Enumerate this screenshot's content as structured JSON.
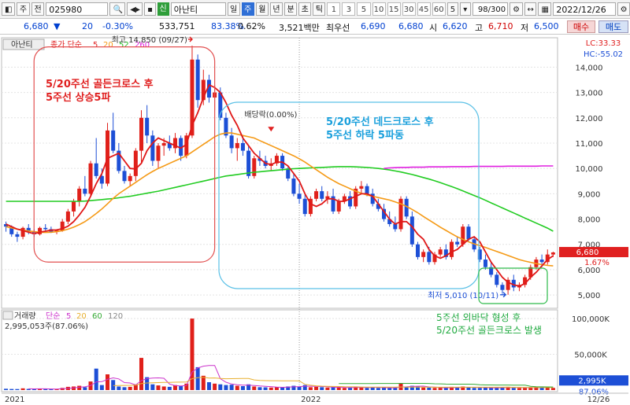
{
  "toolbar": {
    "market": "주",
    "type": "전",
    "code": "025980",
    "sin_badge": "신",
    "stock_name": "아난티",
    "periods": [
      "일",
      "주",
      "월",
      "년",
      "분",
      "초",
      "틱"
    ],
    "active_period": "주",
    "nums": [
      "1",
      "3",
      "5",
      "10",
      "15",
      "30",
      "45",
      "60"
    ],
    "interval": "5",
    "count": "98/300",
    "date": "2022/12/26"
  },
  "quote": {
    "price": "6,680",
    "change": "20",
    "change_pct": "-0.30%",
    "volume": "533,751",
    "ratio": "83.38%",
    "turnover": "0.62%",
    "amount": "3,521백만",
    "best_ask_label": "최우선",
    "best_ask": "6,690",
    "best_bid": "6,680",
    "open_label": "시",
    "open": "6,620",
    "high_label": "고",
    "high": "6,710",
    "low_label": "저",
    "low": "6,500",
    "buy_label": "매수",
    "sell_label": "매도"
  },
  "chart_data": {
    "type": "candlestick",
    "price_legend": {
      "name": "아난티",
      "ma_label": "종가 단순",
      "ma_periods": [
        "5",
        "20",
        "52",
        "260"
      ]
    },
    "lc_label": "LC:33.33",
    "hc_label": "HC:-55.02",
    "price_axis_ticks": [
      "14,000",
      "13,000",
      "12,000",
      "11,000",
      "10,000",
      "9,000",
      "8,000",
      "7,000",
      "6,000",
      "5,000"
    ],
    "ylim": [
      4600,
      15100
    ],
    "current_price_label": "6,680",
    "current_pct_label": "1.67%",
    "candles": [
      [
        7800,
        7900,
        7500,
        7700
      ],
      [
        7700,
        7750,
        7300,
        7400
      ],
      [
        7400,
        7500,
        7100,
        7300
      ],
      [
        7300,
        7700,
        7200,
        7650
      ],
      [
        7650,
        7800,
        7400,
        7500
      ],
      [
        7500,
        7600,
        7300,
        7400
      ],
      [
        7400,
        7700,
        7350,
        7650
      ],
      [
        7650,
        7800,
        7550,
        7600
      ],
      [
        7600,
        7700,
        7450,
        7500
      ],
      [
        7500,
        7600,
        7400,
        7550
      ],
      [
        7550,
        8000,
        7500,
        7900
      ],
      [
        7900,
        8400,
        7800,
        8300
      ],
      [
        8300,
        8800,
        8100,
        8700
      ],
      [
        8700,
        9300,
        8500,
        9200
      ],
      [
        9200,
        9700,
        8900,
        9000
      ],
      [
        9000,
        10300,
        8900,
        10200
      ],
      [
        10200,
        11200,
        9600,
        9700
      ],
      [
        9700,
        10000,
        9200,
        9400
      ],
      [
        9400,
        11800,
        9300,
        11500
      ],
      [
        11500,
        12200,
        10600,
        10700
      ],
      [
        10700,
        11000,
        9800,
        9900
      ],
      [
        9900,
        10100,
        9400,
        9500
      ],
      [
        9500,
        9800,
        9300,
        9700
      ],
      [
        9700,
        10800,
        9500,
        10700
      ],
      [
        10700,
        12300,
        10200,
        12000
      ],
      [
        12000,
        12500,
        11000,
        11300
      ],
      [
        11300,
        11500,
        10100,
        10300
      ],
      [
        10300,
        11000,
        10000,
        10900
      ],
      [
        10900,
        11200,
        10500,
        11000
      ],
      [
        11000,
        11300,
        10700,
        10800
      ],
      [
        10800,
        11400,
        10600,
        11200
      ],
      [
        11200,
        11300,
        10300,
        10500
      ],
      [
        10500,
        11400,
        10400,
        11300
      ],
      [
        11300,
        14850,
        11200,
        14300
      ],
      [
        14300,
        14500,
        12400,
        12700
      ],
      [
        12700,
        13900,
        12500,
        13500
      ],
      [
        13500,
        13700,
        12600,
        12800
      ],
      [
        12800,
        13300,
        12300,
        13000
      ],
      [
        13000,
        13200,
        11900,
        12000
      ],
      [
        12000,
        12200,
        11200,
        11300
      ],
      [
        11300,
        11600,
        10600,
        10800
      ],
      [
        10800,
        11200,
        10300,
        11000
      ],
      [
        11000,
        11300,
        10500,
        10700
      ],
      [
        10700,
        10900,
        9600,
        9700
      ],
      [
        9700,
        10500,
        9600,
        10400
      ],
      [
        10400,
        10700,
        10100,
        10300
      ],
      [
        10300,
        10500,
        10000,
        10100
      ],
      [
        10100,
        10400,
        9900,
        10200
      ],
      [
        10200,
        10600,
        10100,
        10500
      ],
      [
        10500,
        10600,
        9900,
        10000
      ],
      [
        10000,
        10100,
        9500,
        9600
      ],
      [
        9600,
        9800,
        8900,
        9000
      ],
      [
        9000,
        9400,
        8600,
        8800
      ],
      [
        8800,
        9000,
        8100,
        8200
      ],
      [
        8200,
        8900,
        8100,
        8800
      ],
      [
        8800,
        9200,
        8700,
        9100
      ],
      [
        9100,
        9300,
        8700,
        8800
      ],
      [
        8800,
        9100,
        8600,
        8900
      ],
      [
        8900,
        9200,
        8200,
        8300
      ],
      [
        8300,
        8800,
        8200,
        8700
      ],
      [
        8700,
        9000,
        8600,
        8900
      ],
      [
        8900,
        9100,
        8400,
        8500
      ],
      [
        8500,
        9300,
        8400,
        9200
      ],
      [
        9200,
        9500,
        9000,
        9300
      ],
      [
        9300,
        9400,
        8900,
        9000
      ],
      [
        9000,
        9200,
        8500,
        8600
      ],
      [
        8600,
        8800,
        8300,
        8400
      ],
      [
        8400,
        8600,
        7900,
        8000
      ],
      [
        8000,
        8300,
        7700,
        7800
      ],
      [
        7800,
        8100,
        7500,
        7600
      ],
      [
        7600,
        8900,
        7500,
        8800
      ],
      [
        8800,
        8900,
        8000,
        8100
      ],
      [
        8100,
        8300,
        6900,
        7000
      ],
      [
        7000,
        7100,
        6400,
        6500
      ],
      [
        6500,
        6800,
        6300,
        6700
      ],
      [
        6700,
        6900,
        6200,
        6300
      ],
      [
        6300,
        6700,
        6200,
        6600
      ],
      [
        6600,
        6900,
        6500,
        6800
      ],
      [
        6800,
        7000,
        6400,
        6500
      ],
      [
        6500,
        7200,
        6400,
        7100
      ],
      [
        7100,
        7300,
        6900,
        7000
      ],
      [
        7000,
        7800,
        6900,
        7700
      ],
      [
        7700,
        7800,
        7100,
        7200
      ],
      [
        7200,
        7300,
        6700,
        6800
      ],
      [
        6800,
        6900,
        6300,
        6400
      ],
      [
        6400,
        6600,
        6000,
        6100
      ],
      [
        6100,
        6300,
        5700,
        5800
      ],
      [
        5800,
        5900,
        5300,
        5400
      ],
      [
        5400,
        5500,
        5050,
        5200
      ],
      [
        5200,
        5700,
        5010,
        5600
      ],
      [
        5600,
        5800,
        5150,
        5300
      ],
      [
        5300,
        5500,
        5150,
        5400
      ],
      [
        5400,
        5800,
        5300,
        5700
      ],
      [
        5700,
        6200,
        5600,
        6100
      ],
      [
        6100,
        6500,
        6000,
        6400
      ],
      [
        6400,
        6600,
        6100,
        6300
      ],
      [
        6300,
        6800,
        6200,
        6600
      ],
      [
        6600,
        6710,
        6500,
        6680
      ]
    ],
    "ma5": [
      7800,
      7700,
      7600,
      7550,
      7480,
      7420,
      7480,
      7520,
      7560,
      7570,
      7620,
      7720,
      7900,
      8160,
      8460,
      8900,
      9400,
      9800,
      10400,
      10500,
      10600,
      10300,
      10000,
      9980,
      10200,
      10700,
      11000,
      11200,
      11100,
      11000,
      10900,
      10800,
      10950,
      11700,
      12200,
      12800,
      13300,
      13200,
      13000,
      12600,
      12100,
      11700,
      11200,
      10900,
      10600,
      10400,
      10200,
      10150,
      10250,
      10250,
      10100,
      9800,
      9500,
      9000,
      8600,
      8500,
      8600,
      8800,
      8800,
      8700,
      8700,
      8800,
      8900,
      9000,
      9000,
      8900,
      8600,
      8300,
      8000,
      7800,
      7900,
      7900,
      7700,
      7400,
      7200,
      6800,
      6550,
      6450,
      6550,
      6700,
      6800,
      7000,
      7200,
      7300,
      7100,
      6700,
      6300,
      6000,
      5700,
      5500,
      5400,
      5350,
      5450,
      5700,
      5900,
      6150,
      6400,
      6550
    ],
    "ma20": [
      7700,
      7650,
      7600,
      7560,
      7530,
      7500,
      7480,
      7470,
      7480,
      7500,
      7540,
      7600,
      7680,
      7780,
      7900,
      8050,
      8220,
      8400,
      8600,
      8820,
      9000,
      9150,
      9300,
      9450,
      9600,
      9750,
      9880,
      10000,
      10100,
      10200,
      10300,
      10400,
      10500,
      10650,
      10800,
      10950,
      11100,
      11250,
      11350,
      11400,
      11400,
      11350,
      11300,
      11250,
      11200,
      11100,
      11000,
      10900,
      10800,
      10700,
      10600,
      10500,
      10380,
      10250,
      10100,
      9950,
      9800,
      9650,
      9520,
      9400,
      9300,
      9200,
      9100,
      9020,
      8950,
      8900,
      8850,
      8800,
      8750,
      8680,
      8600,
      8500,
      8380,
      8250,
      8100,
      7960,
      7820,
      7680,
      7550,
      7420,
      7300,
      7200,
      7100,
      7020,
      6950,
      6880,
      6800,
      6720,
      6640,
      6560,
      6480,
      6400,
      6340,
      6290,
      6240,
      6200,
      6170,
      6150
    ],
    "ma52": [
      8700,
      8700,
      8700,
      8700,
      8700,
      8700,
      8700,
      8700,
      8700,
      8700,
      8700,
      8700,
      8700,
      8700,
      8710,
      8730,
      8750,
      8770,
      8790,
      8810,
      8840,
      8870,
      8900,
      8940,
      8980,
      9020,
      9060,
      9100,
      9150,
      9200,
      9250,
      9300,
      9350,
      9400,
      9450,
      9500,
      9550,
      9600,
      9650,
      9700,
      9730,
      9760,
      9790,
      9820,
      9850,
      9870,
      9890,
      9910,
      9930,
      9950,
      9970,
      9990,
      10000,
      10010,
      10020,
      10030,
      10040,
      10050,
      10060,
      10070,
      10070,
      10070,
      10060,
      10050,
      10040,
      10020,
      10000,
      9970,
      9940,
      9900,
      9860,
      9810,
      9760,
      9700,
      9640,
      9580,
      9510,
      9440,
      9360,
      9280,
      9200,
      9110,
      9020,
      8930,
      8840,
      8740,
      8640,
      8540,
      8440,
      8340,
      8240,
      8140,
      8040,
      7940,
      7840,
      7740,
      7640,
      7520
    ],
    "ma260": [
      null,
      null,
      null,
      null,
      null,
      null,
      null,
      null,
      null,
      null,
      null,
      null,
      null,
      null,
      null,
      null,
      null,
      null,
      null,
      null,
      null,
      null,
      null,
      null,
      null,
      null,
      null,
      null,
      null,
      null,
      null,
      null,
      null,
      null,
      null,
      null,
      null,
      null,
      null,
      null,
      null,
      null,
      null,
      null,
      null,
      null,
      null,
      null,
      null,
      null,
      null,
      null,
      null,
      null,
      null,
      null,
      null,
      null,
      null,
      null,
      null,
      null,
      null,
      null,
      null,
      null,
      null,
      10000,
      10020,
      10030,
      10040,
      10040,
      10050,
      10050,
      10050,
      10060,
      10060,
      10060,
      10060,
      10070,
      10070,
      10070,
      10070,
      10080,
      10080,
      10080,
      10080,
      10080,
      10080,
      10090,
      10090,
      10090,
      10090,
      10090,
      10090,
      10100,
      10100,
      10100
    ],
    "annotations": {
      "peak_label": "최고 14,850 (09/27)",
      "peak_index": 33,
      "dividend_label": "배당락(0.00%)",
      "dividend_index": 47,
      "trough_label": "최저 5,010 (10/11)",
      "trough_index": 89,
      "box1_text": [
        "5/20주선 골든크로스 후",
        "5주선 상승5파"
      ],
      "box2_text": [
        "5/20주선 데드크로스 후",
        "5주선 하락 5파동"
      ],
      "box3_text": [
        "5주선 외바닥 형성 후",
        "5/20주선 골든크로스 발생"
      ]
    },
    "volume_legend": {
      "name": "거래량",
      "ma_label": "단순",
      "ma_periods": [
        "5",
        "20",
        "60",
        "120"
      ],
      "value_label": "2,995,053주(87.06%)"
    },
    "volume_axis_ticks": [
      "100,000K",
      "50,000K"
    ],
    "volume_ylim": [
      0,
      110000
    ],
    "current_volume_label": "2,995K",
    "current_volume_pct": "87.06%",
    "volume": [
      1800,
      1500,
      1400,
      2400,
      1600,
      1300,
      1900,
      1500,
      1300,
      1400,
      3000,
      4500,
      5000,
      6000,
      4000,
      12000,
      30000,
      7000,
      22000,
      14000,
      5000,
      4000,
      4500,
      8000,
      45000,
      18000,
      8000,
      6500,
      5000,
      4500,
      7000,
      6000,
      9000,
      100000,
      32000,
      20000,
      11000,
      9000,
      8000,
      7000,
      7500,
      6000,
      5500,
      8000,
      5000,
      4000,
      3800,
      3500,
      4000,
      4200,
      5000,
      6000,
      5000,
      7000,
      4000,
      4500,
      4000,
      3500,
      4000,
      3500,
      3000,
      3200,
      5000,
      4000,
      3000,
      3500,
      3000,
      3500,
      3200,
      3000,
      9000,
      4000,
      6000,
      5000,
      3500,
      3500,
      3000,
      3200,
      3000,
      4500,
      3500,
      5000,
      3500,
      3000,
      3000,
      3500,
      3200,
      3500,
      4000,
      4500,
      3000,
      2800,
      3000,
      4000,
      4500,
      3500,
      4000,
      3000
    ],
    "x_labels": [
      "2021",
      "2022",
      "12/26"
    ]
  }
}
